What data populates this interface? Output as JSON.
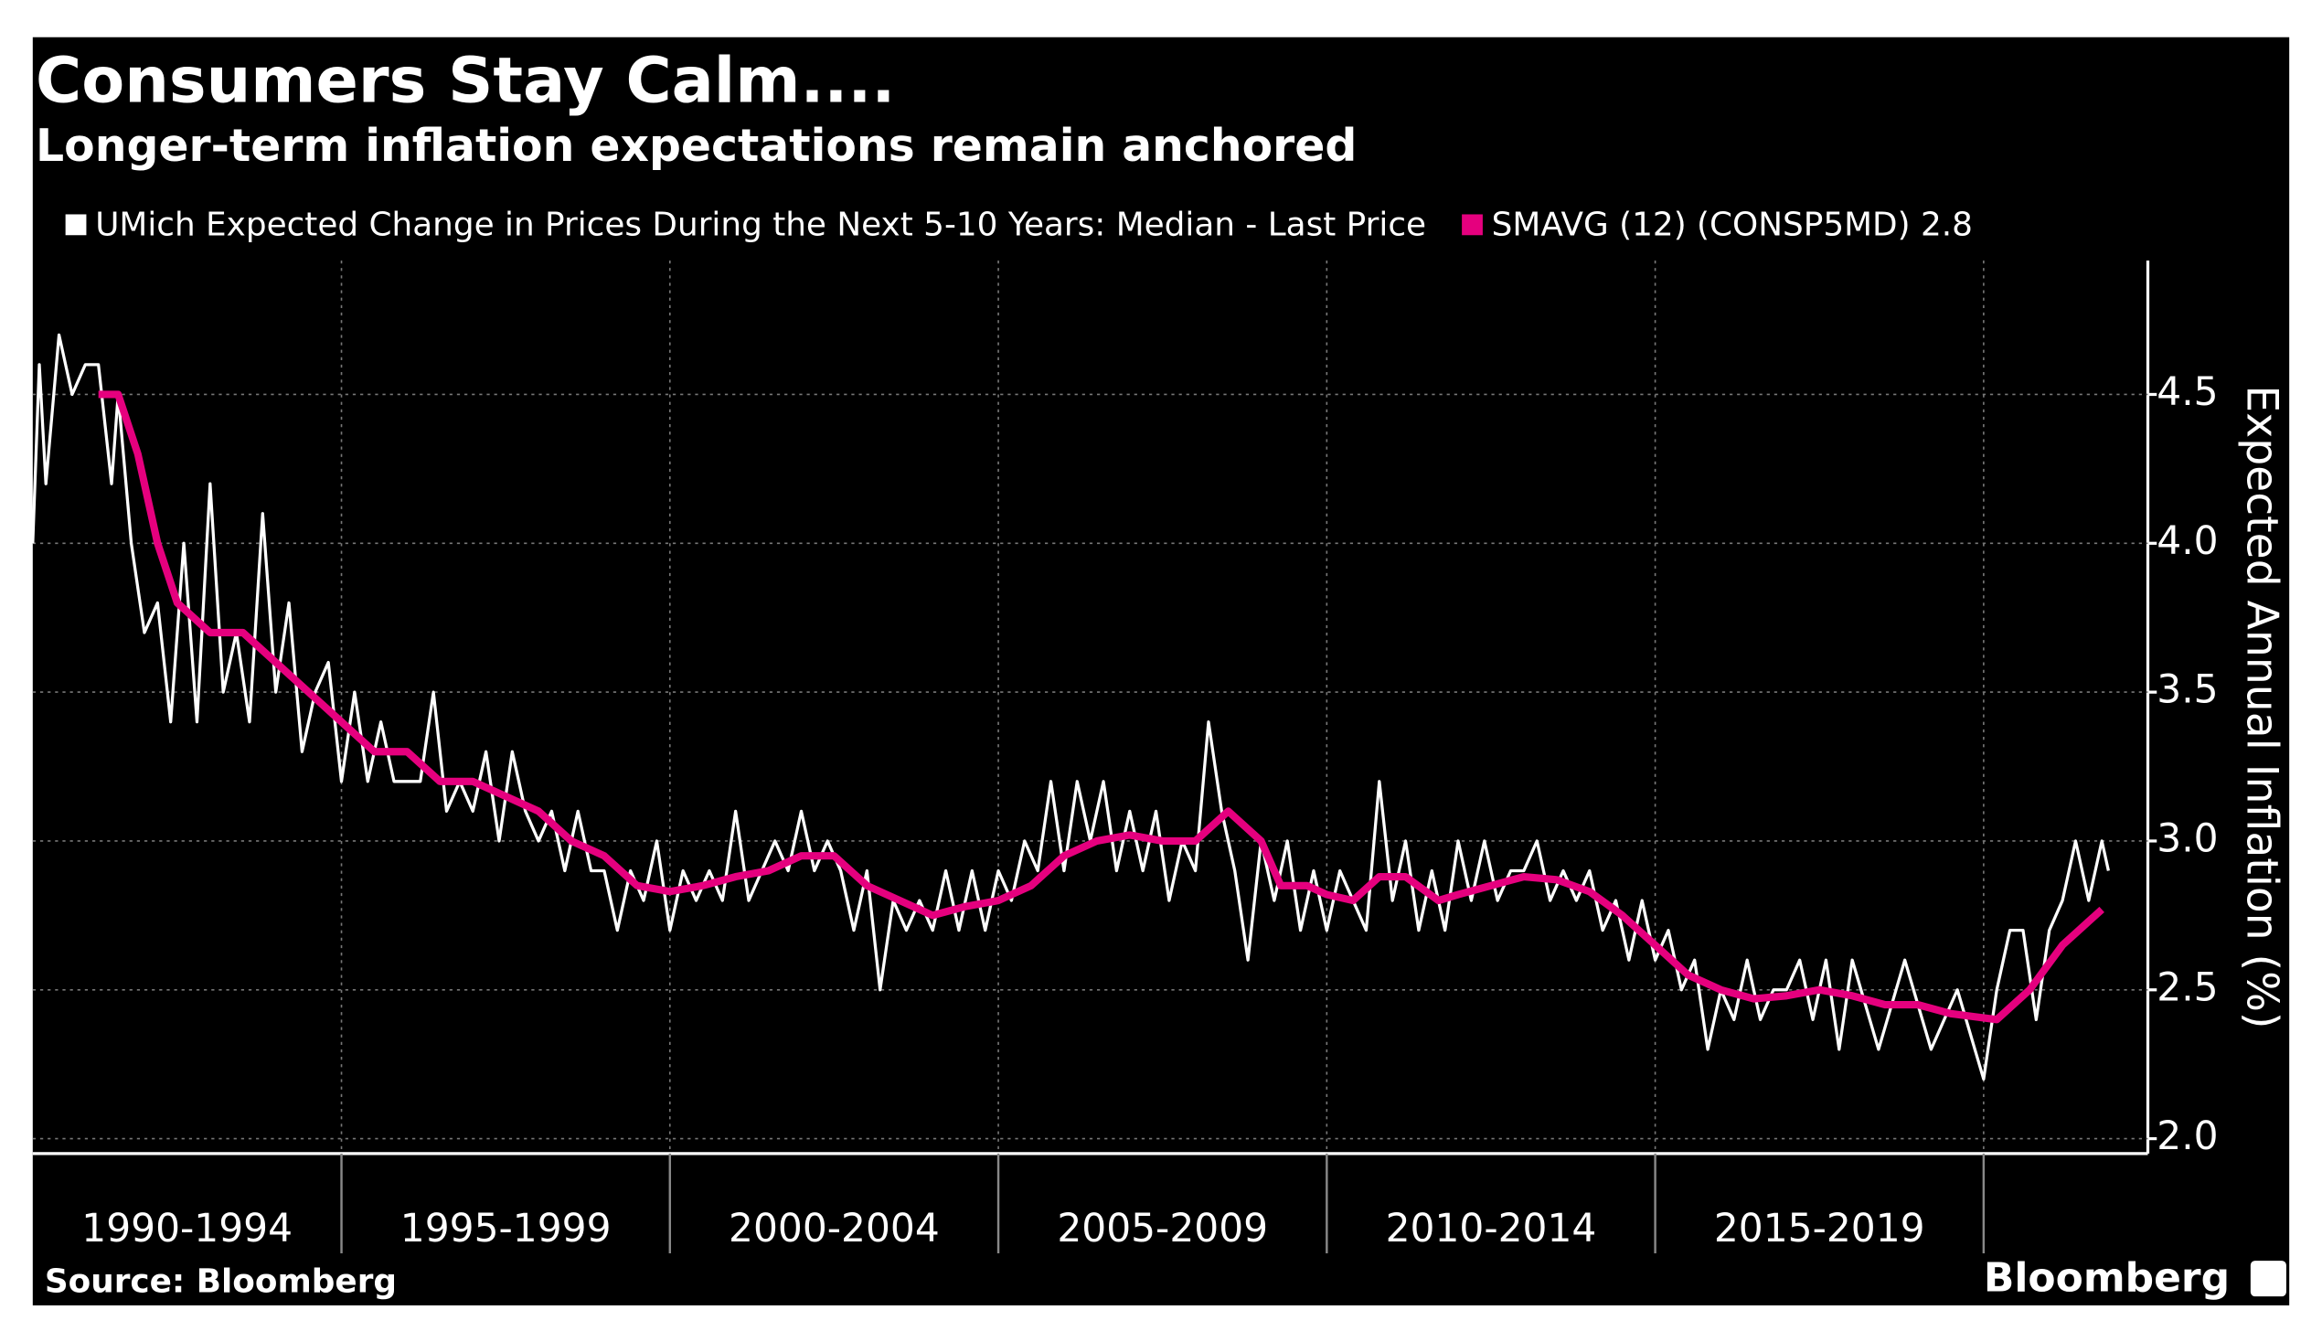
{
  "chart_data": {
    "type": "line",
    "title": "Consumers Stay Calm....",
    "subtitle": "Longer-term inflation expectations remain anchored",
    "y_axis_label": "Expected Annual Inflation (%)",
    "source": "Source: Bloomberg",
    "brand": "Bloomberg",
    "categories": [
      "1990-1994",
      "1995-1999",
      "2000-2004",
      "2005-2009",
      "2010-2014",
      "2015-2019"
    ],
    "xlim": [
      1990.3,
      2022.5
    ],
    "xticks": [
      1995,
      2000,
      2005,
      2010,
      2015,
      2020
    ],
    "ylim": [
      1.95,
      4.95
    ],
    "yticks": [
      {
        "value": 2,
        "label": "2.0"
      },
      2.5,
      {
        "value": 3,
        "label": "3.0"
      },
      3.5,
      {
        "value": 4,
        "label": "4.0"
      },
      4.5
    ],
    "grid": true,
    "series": [
      {
        "name": "UMich Expected Change in Prices During the Next 5-10 Years: Median - Last Price",
        "color": "#ffffff",
        "x": [
          1990.3,
          1990.4,
          1990.5,
          1990.7,
          1990.9,
          1991.1,
          1991.3,
          1991.5,
          1991.6,
          1991.8,
          1992.0,
          1992.2,
          1992.4,
          1992.6,
          1992.8,
          1993.0,
          1993.2,
          1993.4,
          1993.6,
          1993.8,
          1994.0,
          1994.2,
          1994.4,
          1994.6,
          1994.8,
          1995.0,
          1995.2,
          1995.4,
          1995.6,
          1995.8,
          1996.0,
          1996.2,
          1996.4,
          1996.6,
          1996.8,
          1997.0,
          1997.2,
          1997.4,
          1997.6,
          1997.8,
          1998.0,
          1998.2,
          1998.4,
          1998.6,
          1998.8,
          1999.0,
          1999.2,
          1999.4,
          1999.6,
          1999.8,
          2000.0,
          2000.2,
          2000.4,
          2000.6,
          2000.8,
          2001.0,
          2001.2,
          2001.4,
          2001.6,
          2001.8,
          2002.0,
          2002.2,
          2002.4,
          2002.6,
          2002.8,
          2003.0,
          2003.2,
          2003.4,
          2003.6,
          2003.8,
          2004.0,
          2004.2,
          2004.4,
          2004.6,
          2004.8,
          2005.0,
          2005.2,
          2005.4,
          2005.6,
          2005.8,
          2006.0,
          2006.2,
          2006.4,
          2006.6,
          2006.8,
          2007.0,
          2007.2,
          2007.4,
          2007.6,
          2007.8,
          2008.0,
          2008.2,
          2008.4,
          2008.6,
          2008.8,
          2009.0,
          2009.2,
          2009.4,
          2009.6,
          2009.8,
          2010.0,
          2010.2,
          2010.4,
          2010.6,
          2010.8,
          2011.0,
          2011.2,
          2011.4,
          2011.6,
          2011.8,
          2012.0,
          2012.2,
          2012.4,
          2012.6,
          2012.8,
          2013.0,
          2013.2,
          2013.4,
          2013.6,
          2013.8,
          2014.0,
          2014.2,
          2014.4,
          2014.6,
          2014.8,
          2015.0,
          2015.2,
          2015.4,
          2015.6,
          2015.8,
          2016.0,
          2016.2,
          2016.4,
          2016.6,
          2016.8,
          2017.0,
          2017.2,
          2017.4,
          2017.6,
          2017.8,
          2018.0,
          2018.4,
          2018.8,
          2019.2,
          2019.6,
          2020.0,
          2020.2,
          2020.4,
          2020.6,
          2020.8,
          2021.0,
          2021.2,
          2021.4,
          2021.6,
          2021.8,
          2021.9
        ],
        "values": [
          4.0,
          4.6,
          4.2,
          4.7,
          4.5,
          4.6,
          4.6,
          4.2,
          4.5,
          4.0,
          3.7,
          3.8,
          3.4,
          4.0,
          3.4,
          4.2,
          3.5,
          3.7,
          3.4,
          4.1,
          3.5,
          3.8,
          3.3,
          3.5,
          3.6,
          3.2,
          3.5,
          3.2,
          3.4,
          3.2,
          3.2,
          3.2,
          3.5,
          3.1,
          3.2,
          3.1,
          3.3,
          3.0,
          3.3,
          3.1,
          3.0,
          3.1,
          2.9,
          3.1,
          2.9,
          2.9,
          2.7,
          2.9,
          2.8,
          3.0,
          2.7,
          2.9,
          2.8,
          2.9,
          2.8,
          3.1,
          2.8,
          2.9,
          3.0,
          2.9,
          3.1,
          2.9,
          3.0,
          2.9,
          2.7,
          2.9,
          2.5,
          2.8,
          2.7,
          2.8,
          2.7,
          2.9,
          2.7,
          2.9,
          2.7,
          2.9,
          2.8,
          3.0,
          2.9,
          3.2,
          2.9,
          3.2,
          3.0,
          3.2,
          2.9,
          3.1,
          2.9,
          3.1,
          2.8,
          3.0,
          2.9,
          3.4,
          3.1,
          2.9,
          2.6,
          3.0,
          2.8,
          3.0,
          2.7,
          2.9,
          2.7,
          2.9,
          2.8,
          2.7,
          3.2,
          2.8,
          3.0,
          2.7,
          2.9,
          2.7,
          3.0,
          2.8,
          3.0,
          2.8,
          2.9,
          2.9,
          3.0,
          2.8,
          2.9,
          2.8,
          2.9,
          2.7,
          2.8,
          2.6,
          2.8,
          2.6,
          2.7,
          2.5,
          2.6,
          2.3,
          2.5,
          2.4,
          2.6,
          2.4,
          2.5,
          2.5,
          2.6,
          2.4,
          2.6,
          2.3,
          2.6,
          2.3,
          2.6,
          2.3,
          2.5,
          2.2,
          2.5,
          2.7,
          2.7,
          2.4,
          2.7,
          2.8,
          3.0,
          2.8,
          3.0,
          2.9
        ]
      },
      {
        "name": "SMAVG (12) (CONSP5MD) 2.8",
        "color": "#e5007e",
        "x": [
          1991.3,
          1991.6,
          1991.9,
          1992.2,
          1992.5,
          1993.0,
          1993.5,
          1994.0,
          1994.5,
          1995.0,
          1995.5,
          1996.0,
          1996.5,
          1997.0,
          1997.5,
          1998.0,
          1998.5,
          1999.0,
          1999.5,
          2000.0,
          2000.5,
          2001.0,
          2001.5,
          2002.0,
          2002.5,
          2003.0,
          2003.5,
          2004.0,
          2004.5,
          2005.0,
          2005.5,
          2006.0,
          2006.5,
          2007.0,
          2007.5,
          2008.0,
          2008.5,
          2009.0,
          2009.3,
          2009.7,
          2010.0,
          2010.4,
          2010.8,
          2011.2,
          2011.7,
          2012.0,
          2012.5,
          2013.0,
          2013.5,
          2014.0,
          2014.5,
          2015.0,
          2015.5,
          2016.0,
          2016.5,
          2017.0,
          2017.5,
          2018.0,
          2018.5,
          2019.0,
          2019.5,
          2020.2,
          2020.7,
          2021.2,
          2021.8
        ],
        "values": [
          4.5,
          4.5,
          4.3,
          4.0,
          3.8,
          3.7,
          3.7,
          3.6,
          3.5,
          3.4,
          3.3,
          3.3,
          3.2,
          3.2,
          3.15,
          3.1,
          3.0,
          2.95,
          2.85,
          2.83,
          2.85,
          2.88,
          2.9,
          2.95,
          2.95,
          2.85,
          2.8,
          2.75,
          2.78,
          2.8,
          2.85,
          2.95,
          3.0,
          3.02,
          3.0,
          3.0,
          3.1,
          3.0,
          2.85,
          2.85,
          2.82,
          2.8,
          2.88,
          2.88,
          2.8,
          2.82,
          2.85,
          2.88,
          2.87,
          2.83,
          2.75,
          2.65,
          2.55,
          2.5,
          2.47,
          2.48,
          2.5,
          2.48,
          2.45,
          2.45,
          2.42,
          2.4,
          2.5,
          2.65,
          2.77
        ]
      }
    ]
  }
}
